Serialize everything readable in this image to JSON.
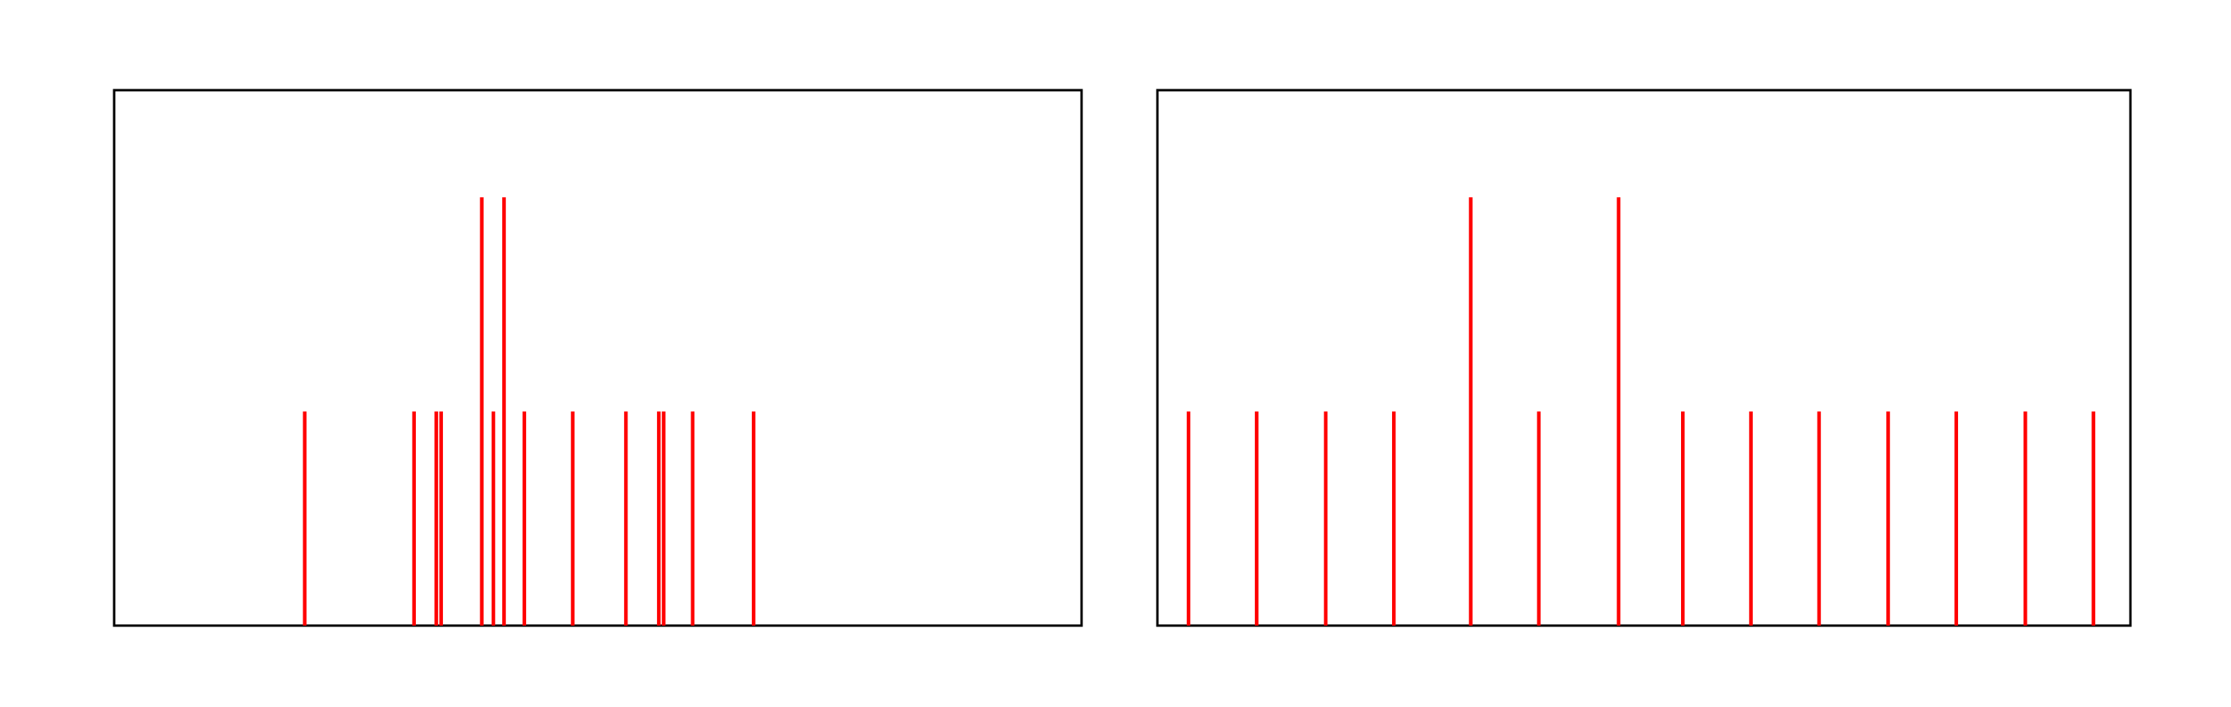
{
  "chart_data": [
    {
      "type": "bar",
      "subtype": "stem",
      "title": "",
      "xlabel": "",
      "ylabel": "",
      "grid": false,
      "legend": "none",
      "xlim": [
        0,
        100
      ],
      "ylim": [
        0,
        2.5
      ],
      "color": "#ff0000",
      "x": [
        19.7,
        31.0,
        33.3,
        33.8,
        38.0,
        39.2,
        40.3,
        42.4,
        47.4,
        52.9,
        56.3,
        56.8,
        59.8,
        66.1
      ],
      "values": [
        1,
        1,
        1,
        1,
        2,
        1,
        2,
        1,
        1,
        1,
        1,
        1,
        1,
        1
      ]
    },
    {
      "type": "bar",
      "subtype": "stem",
      "title": "",
      "xlabel": "",
      "ylabel": "",
      "grid": false,
      "legend": "none",
      "xlim": [
        0,
        100
      ],
      "ylim": [
        0,
        2.5
      ],
      "color": "#ff0000",
      "x": [
        3.2,
        10.2,
        17.3,
        24.3,
        32.2,
        39.2,
        47.4,
        54.0,
        61.0,
        68.0,
        75.1,
        82.1,
        89.2,
        96.2
      ],
      "values": [
        1,
        1,
        1,
        1,
        2,
        1,
        2,
        1,
        1,
        1,
        1,
        1,
        1,
        1
      ]
    }
  ]
}
